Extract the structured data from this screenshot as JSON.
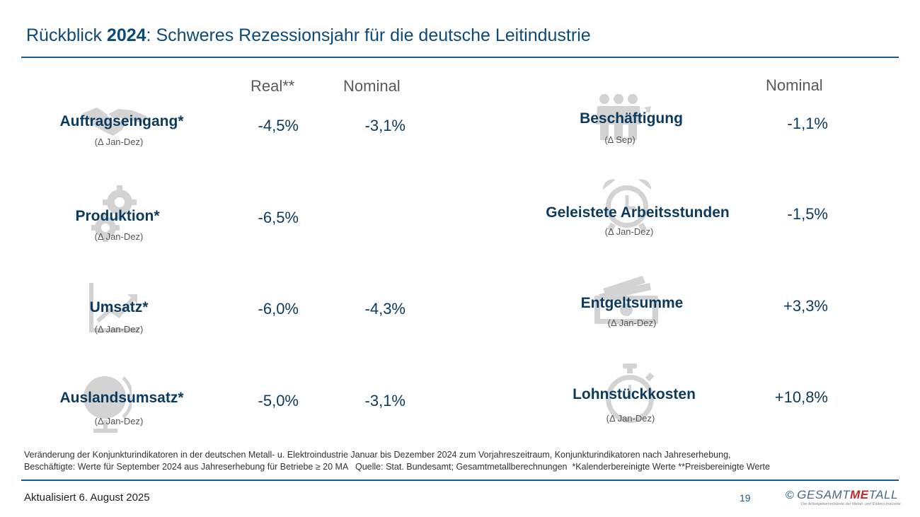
{
  "header": {
    "title_prefix": "Rückblick ",
    "title_year": "2024",
    "title_suffix": ": Schweres Rezessionsjahr für die deutsche Leitindustrie"
  },
  "columns": {
    "left_real": "Real**",
    "left_nominal": "Nominal",
    "right_nominal": "Nominal"
  },
  "left_indicators": [
    {
      "label": "Auftragseingang*",
      "period": "(Δ Jan-Dez)",
      "real": "-4,5%",
      "nominal": "-3,1%",
      "icon": "handshake-icon"
    },
    {
      "label": "Produktion*",
      "period": "(Δ Jan-Dez)",
      "real": "-6,5%",
      "nominal": "",
      "icon": "gears-icon"
    },
    {
      "label": "Umsatz*",
      "period": "(Δ Jan-Dez)",
      "real": "-6,0%",
      "nominal": "-4,3%",
      "icon": "growth-chart-icon"
    },
    {
      "label": "Auslandsumsatz*",
      "period": "(Δ Jan-Dez)",
      "real": "-5,0%",
      "nominal": "-3,1%",
      "icon": "globe-icon"
    }
  ],
  "right_indicators": [
    {
      "label": "Beschäftigung",
      "period": "(Δ Sep)",
      "nominal": "-1,1%",
      "icon": "people-icon"
    },
    {
      "label": "Geleistete Arbeitsstunden",
      "period": "(Δ Jan-Dez)",
      "nominal": "-1,5%",
      "icon": "alarm-clock-icon"
    },
    {
      "label": "Entgeltsumme",
      "period": "(Δ Jan-Dez)",
      "nominal": "+3,3%",
      "icon": "banknotes-icon"
    },
    {
      "label": "Lohnstückkosten",
      "period": "(Δ Jan-Dez)",
      "nominal": "+10,8%",
      "icon": "stopwatch-icon"
    }
  ],
  "footnote": {
    "line1": "Veränderung der Konjunkturindikatoren in der deutschen Metall- u. Elektroindustrie Januar bis Dezember 2024 zum Vorjahreszeitraum, Konjunkturindikatoren nach Jahreserhebung,",
    "line2": "Beschäftigte: Werte für September 2024 aus Jahreserhebung für Betriebe ≥ 20 MA   Quelle: Stat. Bundesamt; Gesamtmetallberechnungen  *Kalenderbereinigte Werte **Preisbereinigte Werte"
  },
  "footer": {
    "updated": "Aktualisiert 6. August 2025",
    "page": "19",
    "logo_copyright": "©",
    "logo_part1": "GESAMT",
    "logo_part2": "ME",
    "logo_part3": "TALL",
    "logo_tagline": "Die Arbeitgeberverbände der Metall- und Elektro-Industrie"
  },
  "colors": {
    "title": "#0b4a7a",
    "text_dark_blue": "#0b3a5e",
    "rule": "#1a5a8a",
    "icon_gray": "#d0d0d0",
    "logo_red": "#c0282d"
  }
}
